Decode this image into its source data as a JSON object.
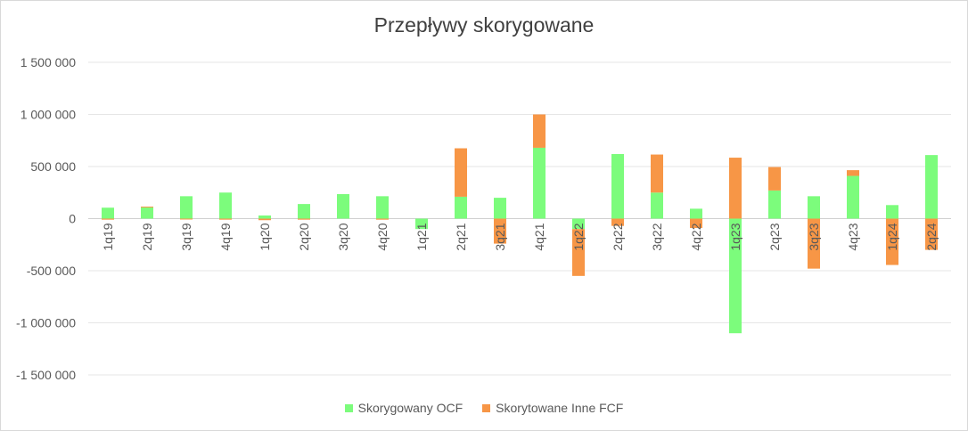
{
  "chart_data": {
    "type": "bar",
    "stacked": true,
    "title": "Przepływy skorygowane",
    "xlabel": "",
    "ylabel": "",
    "ylim": [
      -1500000,
      1500000
    ],
    "y_ticks": [
      1500000,
      1000000,
      500000,
      0,
      -500000,
      -1000000,
      -1500000
    ],
    "y_tick_labels": [
      "1 500 000",
      "1 000 000",
      "500 000",
      "0",
      "-500 000",
      "-1 000 000",
      "-1 500 000"
    ],
    "grid": true,
    "legend_position": "bottom",
    "categories": [
      "1q19",
      "2q19",
      "3q19",
      "4q19",
      "1q20",
      "2q20",
      "3q20",
      "4q20",
      "1q21",
      "2q21",
      "3q21",
      "4q21",
      "1q22",
      "2q22",
      "3q22",
      "4q22",
      "1q23",
      "2q23",
      "3q23",
      "4q23",
      "1q24",
      "2q24"
    ],
    "series": [
      {
        "name": "Skorygowany OCF",
        "color": "#7CFC7C",
        "values": [
          105000,
          110000,
          215000,
          250000,
          30000,
          140000,
          235000,
          215000,
          -100000,
          210000,
          200000,
          680000,
          -100000,
          620000,
          250000,
          95000,
          -1100000,
          270000,
          215000,
          410000,
          130000,
          610000
        ]
      },
      {
        "name": "Skorytowane Inne FCF",
        "color": "#F79646",
        "values": [
          -10000,
          5000,
          -5000,
          -10000,
          -15000,
          -10000,
          0,
          -10000,
          0,
          465000,
          -240000,
          320000,
          -450000,
          -70000,
          365000,
          -90000,
          585000,
          225000,
          -480000,
          55000,
          -445000,
          -300000
        ]
      }
    ]
  }
}
